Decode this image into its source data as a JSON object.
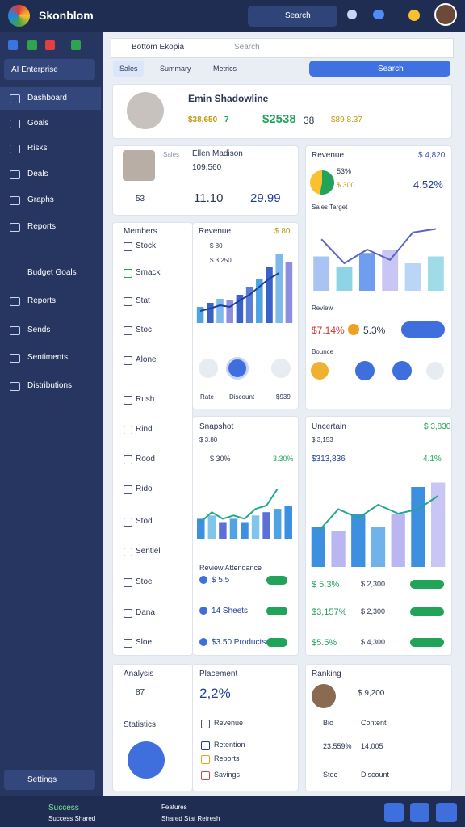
{
  "topbar": {
    "brand": "Skonblom",
    "search": "Search"
  },
  "sidebar": {
    "workspace": "AI Enterprise",
    "nav": [
      "Dashboard",
      "Goals",
      "Risks",
      "Deals",
      "Graphs",
      "Reports"
    ],
    "group": "Budget Goals",
    "group_items": [
      "Reports",
      "Sends",
      "Sentiments",
      "Distributions"
    ],
    "footer": "Settings"
  },
  "toolbar": {
    "breadcrumb": "Bottom Ekopia",
    "search": "Search",
    "tabs": [
      "Sales",
      "Summary",
      "Metrics"
    ],
    "button": "Search"
  },
  "profile": {
    "name": "Emin Shadowline",
    "subtitle": "$38,650",
    "delta": "7",
    "amount": "$2538",
    "count": "38",
    "tags": "$89 8.37"
  },
  "contact": {
    "name": "Ellen Madison",
    "role": "Sales",
    "id": "109,560",
    "count": "53",
    "value": "11.10",
    "total": "29.99"
  },
  "menu": {
    "title": "Members",
    "items": [
      "Stock",
      "Smack",
      "Stat",
      "Stoc",
      "Alone",
      "Rush",
      "Rind",
      "Rood",
      "Rido",
      "Stod",
      "Sentiel",
      "Stoe",
      "Dana",
      "Sloe"
    ],
    "footer_title": "Analysis",
    "footer_value": "87",
    "footer_label": "Statistics"
  },
  "revenue_card": {
    "title": "Revenue",
    "badge": "$ 80",
    "legend": [
      "$ 80",
      "$ 3,250"
    ],
    "footer": [
      "Rate",
      "Discount",
      "$939"
    ],
    "chart": {
      "ylim": [
        0,
        100
      ],
      "bars": [
        20,
        25,
        30,
        28,
        35,
        45,
        55,
        70,
        85,
        75
      ],
      "bar_colors": [
        "#4fa3e0",
        "#3a63c9",
        "#7fb8ea",
        "#8c8fe0",
        "#3a63c9",
        "#5b7fd6"
      ],
      "line": [
        15,
        18,
        22,
        20,
        28,
        35,
        45,
        55,
        62
      ],
      "line_color": "#1f3f9a"
    }
  },
  "overview_card": {
    "title": "Revenue",
    "badge": "$ 4,820",
    "ring": "53%",
    "ring_sub": "$ 300",
    "change": "4.52%",
    "legend": "Sales Target",
    "axis_label": "Review",
    "rate": "$7.14%",
    "rate2": "5.3%",
    "footer": "Bounce",
    "chart": {
      "ylim": [
        0,
        100
      ],
      "bars": [
        50,
        35,
        55,
        60,
        40,
        50
      ],
      "bar_colors": [
        "#a9c4f2",
        "#8fd3e6",
        "#6f9df0",
        "#c9c6f5",
        "#b9d6f7",
        "#9fdce8"
      ],
      "line": [
        75,
        40,
        60,
        45,
        85,
        90
      ],
      "line_color": "#5a63c8"
    }
  },
  "snapshot": {
    "title": "Snapshot",
    "sub": "$ 3.80",
    "stat": "$ 30%",
    "stat2": "3.30%",
    "section": "Review Attendance",
    "rows": [
      "$ 5.5",
      "14 Sheets",
      "$3.50 Products"
    ],
    "chart": {
      "ylim": [
        0,
        100
      ],
      "bars": [
        30,
        35,
        25,
        30,
        25,
        35,
        40,
        45,
        50
      ],
      "bar_colors": [
        "#3d8fe0",
        "#7fc6ea",
        "#5a6fd8",
        "#4fa3e0"
      ],
      "line": [
        25,
        40,
        30,
        35,
        30,
        45,
        50,
        75
      ],
      "line_color": "#22a68f"
    }
  },
  "uncertain": {
    "title": "Uncertain",
    "badge": "$ 3,830",
    "sub": "$ 3,153",
    "value": "$313,836",
    "change": "4.1%",
    "rows": [
      [
        "$ 5.3%",
        "$ 2,300"
      ],
      [
        "$3,157%",
        "$ 2,300"
      ],
      [
        "$5.5%",
        "$ 4,300"
      ]
    ],
    "chart": {
      "ylim": [
        0,
        100
      ],
      "bars": [
        45,
        40,
        60,
        45,
        60,
        90,
        95
      ],
      "bar_colors": [
        "#3d8fe0",
        "#b9b6f2",
        "#3d8fe0",
        "#6fb3ea",
        "#b9b6f2",
        "#3d8fe0",
        "#c9c6f5"
      ],
      "line": [
        40,
        65,
        55,
        70,
        60,
        65,
        80
      ],
      "line_color": "#22a68f"
    }
  },
  "placement": {
    "title": "Placement",
    "value": "2,2%",
    "rows": [
      "Revenue",
      "Retention",
      "Reports",
      "Savings"
    ]
  },
  "ranking": {
    "title": "Ranking",
    "badge": "$ 9,200",
    "rows": [
      [
        "Bio",
        "Content"
      ],
      [
        "23.559%",
        "14,005"
      ],
      [
        "Stoc",
        "Discount"
      ]
    ]
  },
  "bottombar": {
    "status": "Success",
    "status_sub": "Success Shared",
    "feature": "Features",
    "feature_sub": "Shared Stat Refresh"
  }
}
